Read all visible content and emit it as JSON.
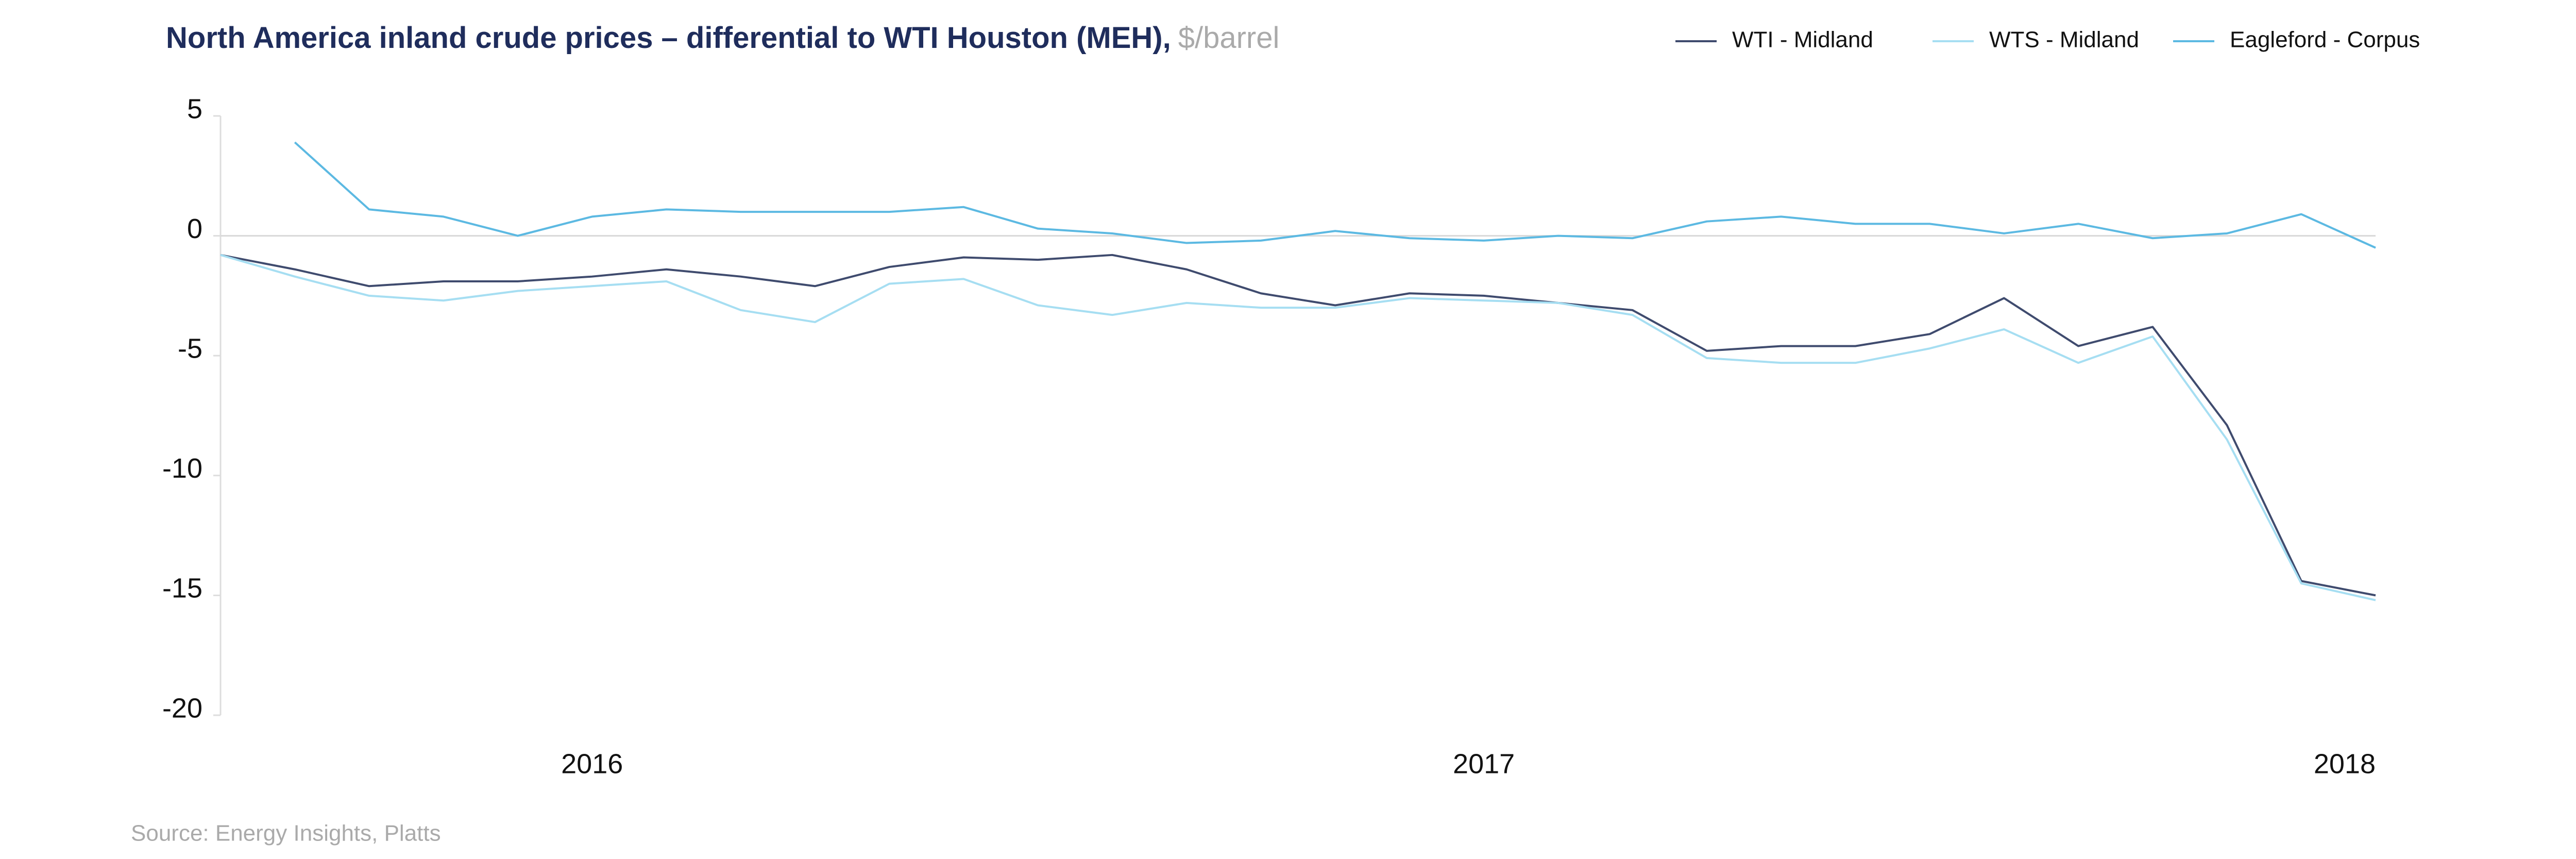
{
  "chart_data": {
    "type": "line",
    "title": "North America inland crude prices – differential to WTI Houston (MEH),",
    "unit": "$/barrel",
    "source": "Source: Energy Insights, Platts",
    "categories": [
      null,
      null,
      null,
      null,
      null,
      "2016",
      null,
      null,
      null,
      null,
      null,
      null,
      null,
      null,
      null,
      null,
      null,
      "2017",
      null,
      null,
      null,
      null,
      null,
      null,
      null,
      null,
      null,
      null,
      null,
      "2018"
    ],
    "series": [
      {
        "name": "WTI - Midland",
        "color": "#3f4b6e",
        "values": [
          -0.8,
          -1.4,
          -2.1,
          -1.9,
          -1.9,
          -1.7,
          -1.4,
          -1.7,
          -2.1,
          -1.3,
          -0.9,
          -1.0,
          -0.8,
          -1.4,
          -2.4,
          -2.9,
          -2.4,
          -2.5,
          -2.8,
          -3.1,
          -4.8,
          -4.6,
          -4.6,
          -4.1,
          -2.6,
          -4.6,
          -3.8,
          -7.9,
          -14.4,
          -15.0
        ]
      },
      {
        "name": "WTS - Midland",
        "color": "#a6def2",
        "values": [
          -0.8,
          -1.7,
          -2.5,
          -2.7,
          -2.3,
          -2.1,
          -1.9,
          -3.1,
          -3.6,
          -2.0,
          -1.8,
          -2.9,
          -3.3,
          -2.8,
          -3.0,
          -3.0,
          -2.6,
          -2.7,
          -2.8,
          -3.3,
          -5.1,
          -5.3,
          -5.3,
          -4.7,
          -3.9,
          -5.3,
          -4.2,
          -8.5,
          -14.5,
          -15.2
        ]
      },
      {
        "name": "Eagleford - Corpus",
        "color": "#5cb9e2",
        "values": [
          null,
          3.9,
          1.1,
          0.8,
          0.0,
          0.8,
          1.1,
          1.0,
          1.0,
          1.0,
          1.2,
          0.3,
          0.1,
          -0.3,
          -0.2,
          0.2,
          -0.1,
          -0.2,
          0.0,
          -0.1,
          0.6,
          0.8,
          0.5,
          0.5,
          0.1,
          0.5,
          -0.1,
          0.1,
          0.9,
          -0.5
        ]
      }
    ],
    "ylim": [
      -20,
      5
    ],
    "yticks": [
      -20,
      -15,
      -10,
      -5,
      0,
      5
    ],
    "legend": "top-right"
  }
}
